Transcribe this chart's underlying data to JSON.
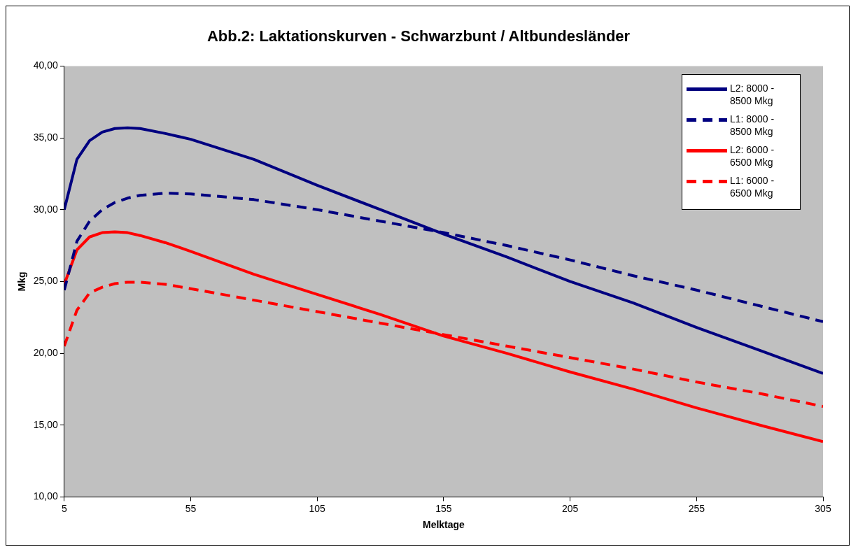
{
  "chart_data": {
    "type": "line",
    "title": "Abb.2: Laktationskurven - Schwarzbunt / Altbundesländer",
    "xlabel": "Melktage",
    "ylabel": "Mkg",
    "x": [
      5,
      10,
      15,
      20,
      25,
      30,
      35,
      45,
      55,
      80,
      105,
      130,
      155,
      180,
      205,
      230,
      255,
      280,
      305
    ],
    "xlim": [
      5,
      305
    ],
    "xticks": [
      5,
      55,
      105,
      155,
      205,
      255,
      305
    ],
    "ylim": [
      10,
      40
    ],
    "yticks": [
      {
        "value": 10,
        "label": "10,00"
      },
      {
        "value": 15,
        "label": "15,00"
      },
      {
        "value": 20,
        "label": "20,00"
      },
      {
        "value": 25,
        "label": "25,00"
      },
      {
        "value": 30,
        "label": "30,00"
      },
      {
        "value": 35,
        "label": "35,00"
      },
      {
        "value": 40,
        "label": "40,00"
      }
    ],
    "grid": false,
    "legend": "top right",
    "marker": "none",
    "series": [
      {
        "name": "L2: 8000 - 8500 Mkg",
        "color": "#000080",
        "line_style": "solid",
        "values": [
          30.0,
          33.5,
          34.8,
          35.4,
          35.65,
          35.7,
          35.65,
          35.3,
          34.9,
          33.5,
          31.7,
          30.0,
          28.3,
          26.7,
          25.0,
          23.5,
          21.8,
          20.2,
          18.6
        ]
      },
      {
        "name": "L1: 8000 - 8500 Mkg",
        "color": "#000080",
        "line_style": "dashed",
        "values": [
          24.4,
          27.8,
          29.2,
          30.0,
          30.5,
          30.8,
          31.0,
          31.15,
          31.1,
          30.7,
          30.0,
          29.2,
          28.4,
          27.5,
          26.5,
          25.4,
          24.4,
          23.3,
          22.2
        ]
      },
      {
        "name": "L2: 6000 - 6500 Mkg",
        "color": "#ff0000",
        "line_style": "solid",
        "values": [
          24.8,
          27.2,
          28.1,
          28.4,
          28.45,
          28.4,
          28.2,
          27.7,
          27.1,
          25.5,
          24.1,
          22.7,
          21.2,
          20.0,
          18.7,
          17.5,
          16.2,
          15.0,
          13.85
        ]
      },
      {
        "name": "L1: 6000 - 6500 Mkg",
        "color": "#ff0000",
        "line_style": "dashed",
        "values": [
          20.5,
          23.0,
          24.2,
          24.6,
          24.85,
          24.95,
          24.95,
          24.8,
          24.5,
          23.7,
          22.9,
          22.1,
          21.3,
          20.5,
          19.7,
          18.9,
          18.0,
          17.2,
          16.3
        ]
      }
    ]
  }
}
